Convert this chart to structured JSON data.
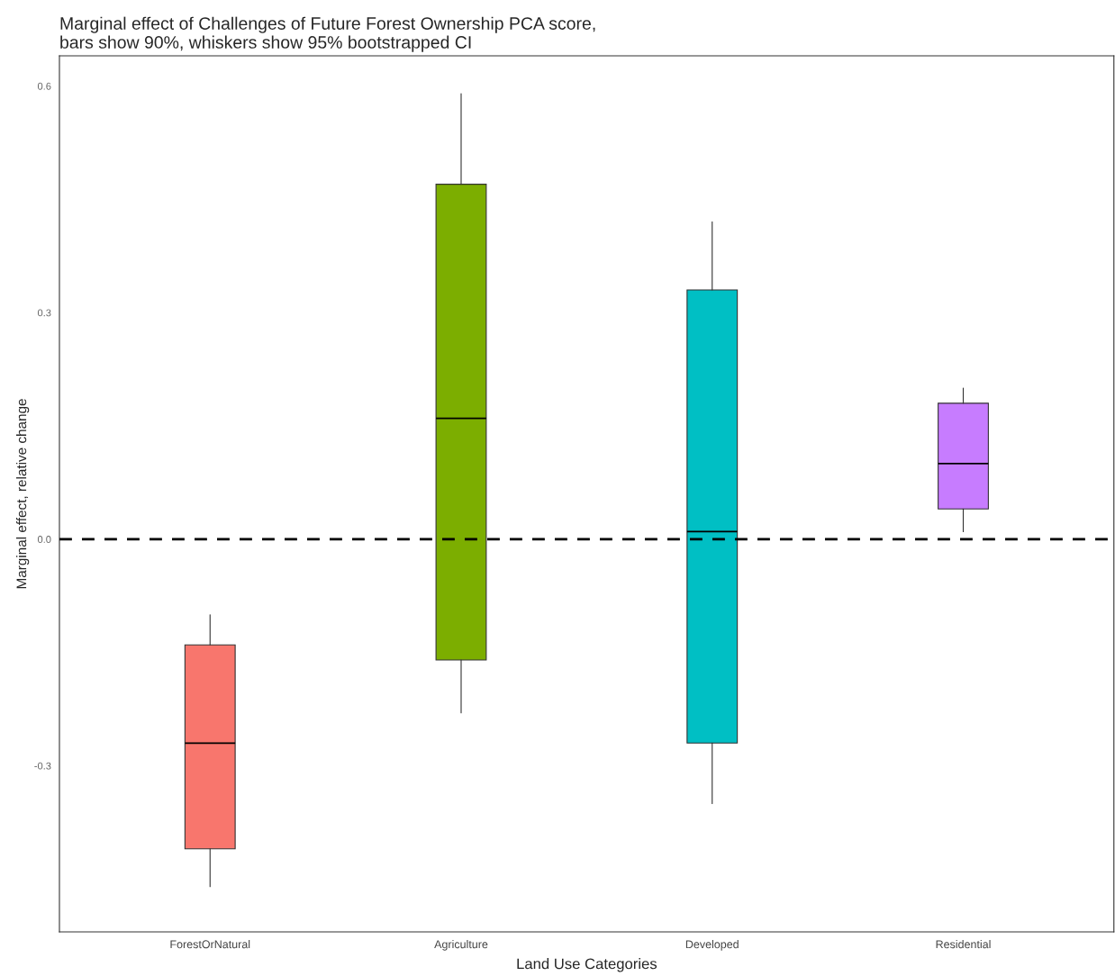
{
  "chart_data": {
    "type": "box",
    "title": "Marginal effect of Challenges of Future Forest Ownership PCA score,\nbars show 90%, whiskers show 95% bootstrapped CI",
    "xlabel": "Land Use Categories",
    "ylabel": "Marginal effect, relative change",
    "categories": [
      "ForestOrNatural",
      "Agriculture",
      "Developed",
      "Residential"
    ],
    "colors": [
      "#f8766d",
      "#7cae00",
      "#00bfc4",
      "#c77cff"
    ],
    "boxes": [
      {
        "low": -0.46,
        "q1": -0.41,
        "median": -0.27,
        "q3": -0.14,
        "high": -0.1
      },
      {
        "low": -0.23,
        "q1": -0.16,
        "median": 0.16,
        "q3": 0.47,
        "high": 0.59
      },
      {
        "low": -0.35,
        "q1": -0.27,
        "median": 0.01,
        "q3": 0.33,
        "high": 0.42
      },
      {
        "low": 0.01,
        "q1": 0.04,
        "median": 0.1,
        "q3": 0.18,
        "high": 0.2
      }
    ],
    "ylim": [
      -0.52,
      0.64
    ],
    "yticks": [
      {
        "value": -0.3,
        "label": "-0.3"
      },
      {
        "value": 0.0,
        "label": "0.0"
      },
      {
        "value": 0.3,
        "label": "0.3"
      },
      {
        "value": 0.6,
        "label": "0.6"
      }
    ],
    "ref_lines": [
      {
        "axis": "y",
        "value": 0,
        "line_style": "dashed",
        "color": "#000000"
      }
    ],
    "grid": false,
    "legend": false
  }
}
